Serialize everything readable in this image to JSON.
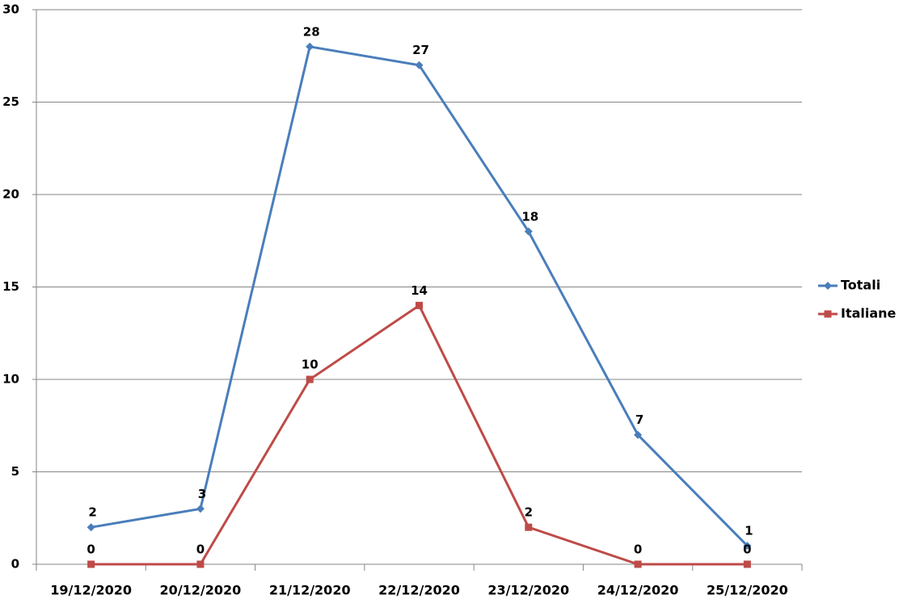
{
  "chart_data": {
    "type": "line",
    "categories": [
      "19/12/2020",
      "20/12/2020",
      "21/12/2020",
      "22/12/2020",
      "23/12/2020",
      "24/12/2020",
      "25/12/2020"
    ],
    "series": [
      {
        "name": "Totali",
        "color": "#4a7ebb",
        "marker": "diamond",
        "values": [
          2,
          3,
          28,
          27,
          18,
          7,
          1
        ]
      },
      {
        "name": "Italiane",
        "color": "#be4b48",
        "marker": "square",
        "values": [
          0,
          0,
          10,
          14,
          2,
          0,
          0
        ]
      }
    ],
    "ylim": [
      0,
      30
    ],
    "yticks": [
      0,
      5,
      10,
      15,
      20,
      25,
      30
    ],
    "grid": true,
    "legend": "right"
  }
}
